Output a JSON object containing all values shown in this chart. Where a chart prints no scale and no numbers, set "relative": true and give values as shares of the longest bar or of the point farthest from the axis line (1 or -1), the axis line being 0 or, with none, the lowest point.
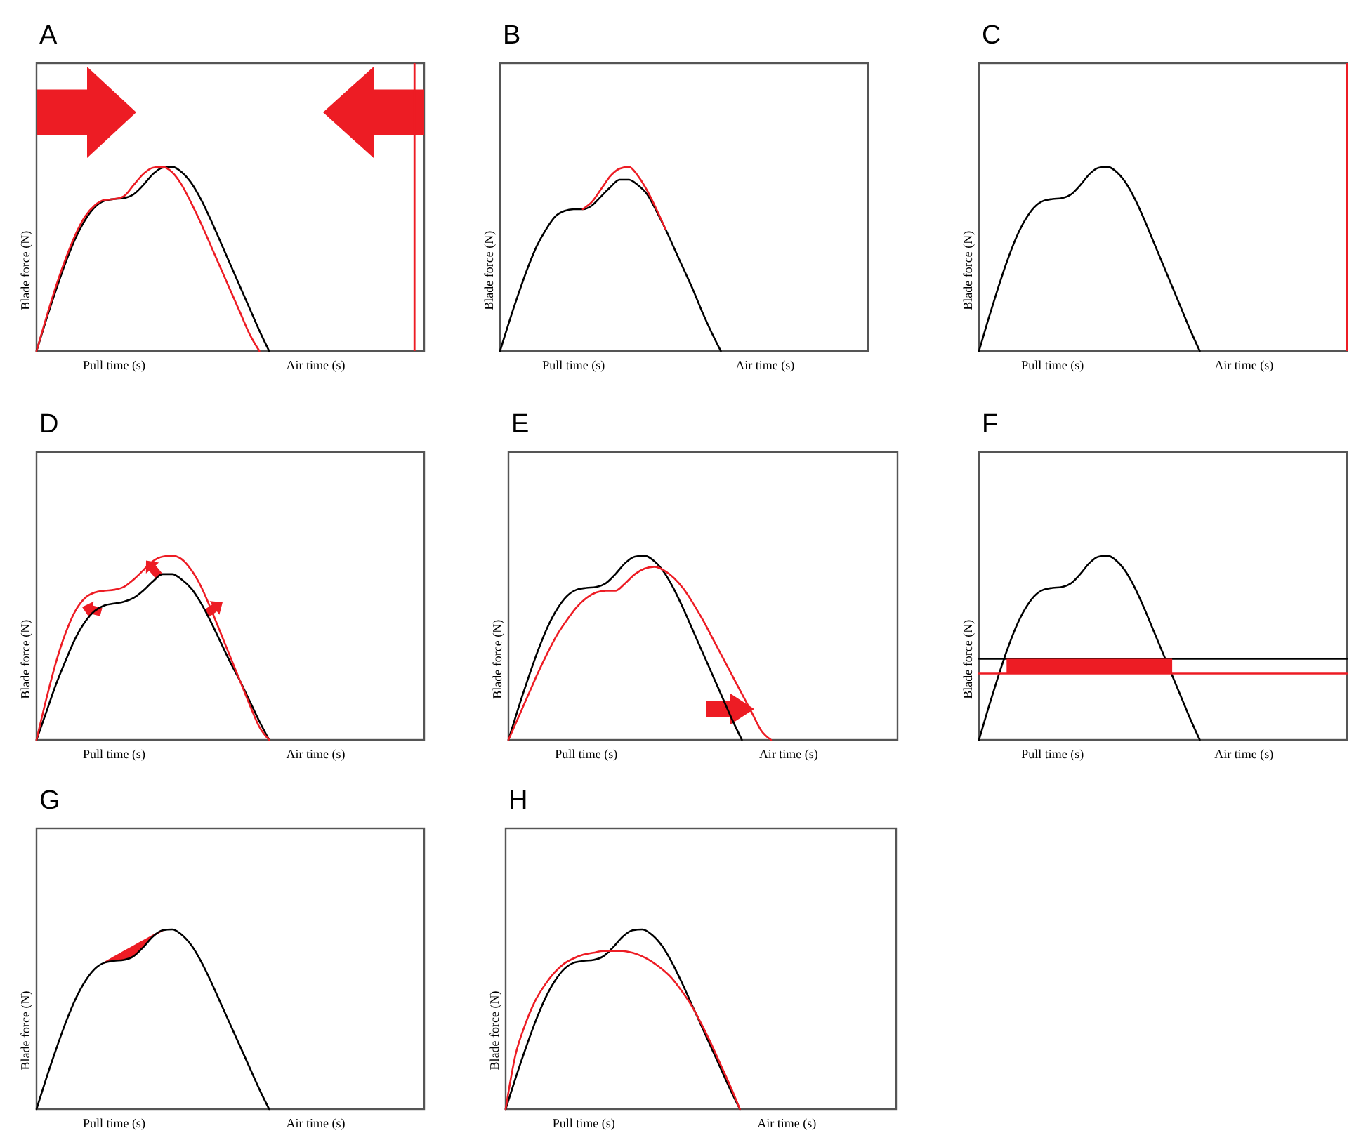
{
  "chart_data": [
    {
      "type": "line",
      "title": "A",
      "ylabel": "Blade force (N)",
      "annotations": [
        "Pull time (s)",
        "Air time (s)"
      ],
      "relative": true,
      "categories": [
        null,
        null,
        null,
        null,
        null,
        null,
        null,
        null,
        null,
        null,
        null,
        null,
        null,
        null,
        null,
        null,
        null,
        null,
        null,
        null,
        null,
        null,
        null,
        null,
        null,
        null,
        null,
        null,
        null,
        null,
        null,
        null,
        null,
        null,
        null,
        null,
        null,
        null,
        null,
        null,
        null
      ],
      "series": [
        {
          "color": "#000000",
          "values": [
            0,
            0.17,
            0.33,
            0.48,
            0.61,
            0.71,
            0.78,
            0.815,
            0.825,
            0.83,
            0.85,
            0.9,
            0.96,
            0.995,
            1,
            0.97,
            0.91,
            0.82,
            0.71,
            0.59,
            0.47,
            0.35,
            0.23,
            0.11,
            0,
            null,
            null,
            null,
            null,
            null,
            null,
            null,
            null,
            null,
            null,
            null,
            null,
            null,
            null,
            null,
            null
          ]
        },
        {
          "color": "#ed1c24",
          "values": [
            0,
            0.18,
            0.35,
            0.5,
            0.63,
            0.73,
            0.79,
            0.82,
            0.825,
            0.84,
            0.9,
            0.96,
            0.995,
            1,
            0.97,
            0.9,
            0.8,
            0.69,
            0.57,
            0.45,
            0.33,
            0.21,
            0.09,
            0,
            null,
            null,
            null,
            null,
            null,
            null,
            null,
            null,
            null,
            null,
            null,
            null,
            null,
            null,
            null,
            null,
            null
          ]
        }
      ]
    },
    {
      "type": "line",
      "title": "B",
      "ylabel": "Blade force (N)",
      "annotations": [
        "Pull time (s)",
        "Air time (s)"
      ],
      "relative": true,
      "categories": [
        null,
        null,
        null,
        null,
        null,
        null,
        null,
        null,
        null,
        null,
        null,
        null,
        null,
        null,
        null,
        null,
        null,
        null,
        null,
        null,
        null,
        null,
        null,
        null,
        null,
        null,
        null,
        null,
        null,
        null,
        null,
        null,
        null,
        null,
        null,
        null,
        null,
        null,
        null,
        null,
        null
      ],
      "series": [
        {
          "color": "#000000",
          "values": [
            0,
            0.16,
            0.31,
            0.45,
            0.57,
            0.66,
            0.73,
            0.76,
            0.77,
            0.77,
            0.79,
            0.84,
            0.89,
            0.93,
            0.93,
            0.9,
            0.85,
            0.76,
            0.66,
            0.55,
            0.44,
            0.33,
            0.21,
            0.1,
            0,
            null,
            null,
            null,
            null,
            null,
            null,
            null,
            null,
            null,
            null,
            null,
            null,
            null,
            null,
            null,
            null
          ]
        },
        {
          "color": "#ed1c24",
          "values": [
            null,
            null,
            null,
            null,
            null,
            null,
            null,
            null,
            null,
            0.77,
            0.81,
            0.88,
            0.95,
            0.99,
            1,
            0.95,
            0.87,
            0.77,
            0.66,
            null,
            null,
            null,
            null,
            null,
            null,
            null,
            null,
            null,
            null,
            null,
            null,
            null,
            null,
            null,
            null,
            null,
            null,
            null,
            null,
            null,
            null
          ]
        }
      ]
    },
    {
      "type": "line",
      "title": "C",
      "ylabel": "Blade force (N)",
      "annotations": [
        "Pull time (s)",
        "Air time (s)"
      ],
      "relative": true,
      "categories": [
        null,
        null,
        null,
        null,
        null,
        null,
        null,
        null,
        null,
        null,
        null,
        null,
        null,
        null,
        null,
        null,
        null,
        null,
        null,
        null,
        null,
        null,
        null,
        null,
        null,
        null,
        null,
        null,
        null,
        null,
        null,
        null,
        null,
        null,
        null,
        null,
        null,
        null,
        null,
        null,
        null
      ],
      "series": [
        {
          "color": "#000000",
          "values": [
            0,
            0.17,
            0.33,
            0.48,
            0.61,
            0.71,
            0.78,
            0.815,
            0.825,
            0.83,
            0.85,
            0.9,
            0.96,
            0.995,
            1,
            0.97,
            0.91,
            0.82,
            0.71,
            0.59,
            0.47,
            0.35,
            0.23,
            0.11,
            0,
            null,
            null,
            null,
            null,
            null,
            null,
            null,
            null,
            null,
            null,
            null,
            null,
            null,
            null,
            null,
            null
          ]
        }
      ]
    },
    {
      "type": "line",
      "title": "D",
      "ylabel": "Blade force (N)",
      "annotations": [
        "Pull time (s)",
        "Air time (s)"
      ],
      "relative": true,
      "categories": [
        null,
        null,
        null,
        null,
        null,
        null,
        null,
        null,
        null,
        null,
        null,
        null,
        null,
        null,
        null,
        null,
        null,
        null,
        null,
        null,
        null,
        null,
        null,
        null,
        null,
        null,
        null,
        null,
        null,
        null,
        null,
        null,
        null,
        null,
        null,
        null,
        null,
        null,
        null,
        null,
        null
      ],
      "series": [
        {
          "color": "#000000",
          "values": [
            0,
            0.15,
            0.3,
            0.43,
            0.55,
            0.64,
            0.7,
            0.73,
            0.74,
            0.75,
            0.77,
            0.81,
            0.86,
            0.9,
            0.9,
            0.87,
            0.82,
            0.74,
            0.64,
            0.53,
            0.42,
            0.32,
            0.21,
            0.1,
            0,
            null,
            null,
            null,
            null,
            null,
            null,
            null,
            null,
            null,
            null,
            null,
            null,
            null,
            null,
            null,
            null
          ]
        },
        {
          "color": "#ed1c24",
          "values": [
            0,
            0.22,
            0.42,
            0.58,
            0.7,
            0.77,
            0.8,
            0.81,
            0.815,
            0.83,
            0.87,
            0.92,
            0.97,
            0.995,
            1,
            0.98,
            0.92,
            0.83,
            0.71,
            0.58,
            0.45,
            0.32,
            0.19,
            0.07,
            0,
            null,
            null,
            null,
            null,
            null,
            null,
            null,
            null,
            null,
            null,
            null,
            null,
            null,
            null,
            null,
            null
          ]
        }
      ]
    },
    {
      "type": "line",
      "title": "E",
      "ylabel": "Blade force (N)",
      "annotations": [
        "Pull time (s)",
        "Air time (s)"
      ],
      "relative": true,
      "categories": [
        null,
        null,
        null,
        null,
        null,
        null,
        null,
        null,
        null,
        null,
        null,
        null,
        null,
        null,
        null,
        null,
        null,
        null,
        null,
        null,
        null,
        null,
        null,
        null,
        null,
        null,
        null,
        null,
        null,
        null,
        null,
        null,
        null,
        null,
        null,
        null,
        null,
        null,
        null,
        null,
        null
      ],
      "series": [
        {
          "color": "#000000",
          "values": [
            0,
            0.17,
            0.33,
            0.48,
            0.61,
            0.71,
            0.78,
            0.815,
            0.825,
            0.83,
            0.85,
            0.9,
            0.96,
            0.995,
            1,
            0.97,
            0.91,
            0.82,
            0.71,
            0.59,
            0.47,
            0.35,
            0.23,
            0.11,
            0,
            null,
            null,
            null,
            null,
            null,
            null,
            null,
            null,
            null,
            null,
            null,
            null,
            null,
            null,
            null,
            null
          ]
        },
        {
          "color": "#ed1c24",
          "values": [
            0,
            0.12,
            0.24,
            0.36,
            0.47,
            0.57,
            0.65,
            0.72,
            0.77,
            0.8,
            0.81,
            0.81,
            0.85,
            0.9,
            0.93,
            0.94,
            0.92,
            0.88,
            0.82,
            0.74,
            0.65,
            0.55,
            0.45,
            0.35,
            0.25,
            0.15,
            0.05,
            0,
            null,
            null,
            null,
            null,
            null,
            null,
            null,
            null,
            null,
            null,
            null,
            null,
            null
          ]
        }
      ]
    },
    {
      "type": "line",
      "title": "F",
      "ylabel": "Blade force (N)",
      "annotations": [
        "Pull time (s)",
        "Air time (s)"
      ],
      "relative": true,
      "categories": [
        null,
        null,
        null,
        null,
        null,
        null,
        null,
        null,
        null,
        null,
        null,
        null,
        null,
        null,
        null,
        null,
        null,
        null,
        null,
        null,
        null,
        null,
        null,
        null,
        null,
        null,
        null,
        null,
        null,
        null,
        null,
        null,
        null,
        null,
        null,
        null,
        null,
        null,
        null,
        null,
        null
      ],
      "series": [
        {
          "color": "#000000",
          "values": [
            0,
            0.17,
            0.33,
            0.48,
            0.61,
            0.71,
            0.78,
            0.815,
            0.825,
            0.83,
            0.85,
            0.9,
            0.96,
            0.995,
            1,
            0.97,
            0.91,
            0.82,
            0.71,
            0.59,
            0.47,
            0.35,
            0.23,
            0.11,
            0,
            null,
            null,
            null,
            null,
            null,
            null,
            null,
            null,
            null,
            null,
            null,
            null,
            null,
            null,
            null,
            null
          ]
        },
        {
          "color": "#000000",
          "values": [
            0.44,
            0.44,
            0.44,
            0.44,
            0.44,
            0.44,
            0.44,
            0.44,
            0.44,
            0.44,
            0.44,
            0.44,
            0.44,
            0.44,
            0.44,
            0.44,
            0.44,
            0.44,
            0.44,
            0.44,
            0.44,
            0.44,
            0.44,
            0.44,
            0.44,
            0.44,
            0.44,
            0.44,
            0.44,
            0.44,
            0.44,
            0.44,
            0.44,
            0.44,
            0.44,
            0.44,
            0.44,
            0.44,
            0.44,
            0.44,
            0.44
          ]
        },
        {
          "color": "#ed1c24",
          "values": [
            0.36,
            0.36,
            0.36,
            0.36,
            0.36,
            0.36,
            0.36,
            0.36,
            0.36,
            0.36,
            0.36,
            0.36,
            0.36,
            0.36,
            0.36,
            0.36,
            0.36,
            0.36,
            0.36,
            0.36,
            0.36,
            0.36,
            0.36,
            0.36,
            0.36,
            0.36,
            0.36,
            0.36,
            0.36,
            0.36,
            0.36,
            0.36,
            0.36,
            0.36,
            0.36,
            0.36,
            0.36,
            0.36,
            0.36,
            0.36,
            0.36
          ],
          "upper": [
            null,
            null,
            null,
            0.44,
            0.44,
            0.44,
            0.44,
            0.44,
            0.44,
            0.44,
            0.44,
            0.44,
            0.44,
            0.44,
            0.44,
            0.44,
            0.44,
            0.44,
            0.44,
            0.44,
            0.44,
            0.44,
            null,
            null,
            null,
            null,
            null,
            null,
            null,
            null,
            null,
            null,
            null,
            null,
            null,
            null,
            null,
            null,
            null,
            null,
            null
          ],
          "lower": [
            null,
            null,
            null,
            0.36,
            0.36,
            0.36,
            0.36,
            0.36,
            0.36,
            0.36,
            0.36,
            0.36,
            0.36,
            0.36,
            0.36,
            0.36,
            0.36,
            0.36,
            0.36,
            0.36,
            0.36,
            0.36,
            null,
            null,
            null,
            null,
            null,
            null,
            null,
            null,
            null,
            null,
            null,
            null,
            null,
            null,
            null,
            null,
            null,
            null,
            null
          ]
        }
      ]
    },
    {
      "type": "line",
      "title": "G",
      "ylabel": "Blade force (N)",
      "annotations": [
        "Pull time (s)",
        "Air time (s)"
      ],
      "relative": true,
      "categories": [
        null,
        null,
        null,
        null,
        null,
        null,
        null,
        null,
        null,
        null,
        null,
        null,
        null,
        null,
        null,
        null,
        null,
        null,
        null,
        null,
        null,
        null,
        null,
        null,
        null,
        null,
        null,
        null,
        null,
        null,
        null,
        null,
        null,
        null,
        null,
        null,
        null,
        null,
        null,
        null,
        null
      ],
      "series": [
        {
          "color": "#ed1c24",
          "values": [
            null,
            null,
            null,
            null,
            null,
            null,
            null,
            0.815,
            0.845,
            0.875,
            0.905,
            0.935,
            0.965,
            0.995,
            null,
            null,
            null,
            null,
            null,
            null,
            null,
            null,
            null,
            null,
            null,
            null,
            null,
            null,
            null,
            null,
            null,
            null,
            null,
            null,
            null,
            null,
            null,
            null,
            null,
            null,
            null
          ],
          "upper": [
            null,
            null,
            null,
            null,
            null,
            null,
            null,
            0.815,
            0.845,
            0.875,
            0.905,
            0.935,
            0.965,
            0.995,
            null,
            null,
            null,
            null,
            null,
            null,
            null,
            null,
            null,
            null,
            null,
            null,
            null,
            null,
            null,
            null,
            null,
            null,
            null,
            null,
            null,
            null,
            null,
            null,
            null,
            null,
            null
          ],
          "lower": [
            null,
            null,
            null,
            null,
            null,
            null,
            null,
            0.815,
            0.825,
            0.83,
            0.85,
            0.9,
            0.96,
            0.995,
            null,
            null,
            null,
            null,
            null,
            null,
            null,
            null,
            null,
            null,
            null,
            null,
            null,
            null,
            null,
            null,
            null,
            null,
            null,
            null,
            null,
            null,
            null,
            null,
            null,
            null,
            null
          ]
        },
        {
          "color": "#000000",
          "values": [
            0,
            0.17,
            0.33,
            0.48,
            0.61,
            0.71,
            0.78,
            0.815,
            0.825,
            0.83,
            0.85,
            0.9,
            0.96,
            0.995,
            1,
            0.97,
            0.91,
            0.82,
            0.71,
            0.59,
            0.47,
            0.35,
            0.23,
            0.11,
            0,
            null,
            null,
            null,
            null,
            null,
            null,
            null,
            null,
            null,
            null,
            null,
            null,
            null,
            null,
            null,
            null
          ]
        }
      ]
    },
    {
      "type": "line",
      "title": "H",
      "ylabel": "Blade force (N)",
      "annotations": [
        "Pull time (s)",
        "Air time (s)"
      ],
      "relative": true,
      "categories": [
        null,
        null,
        null,
        null,
        null,
        null,
        null,
        null,
        null,
        null,
        null,
        null,
        null,
        null,
        null,
        null,
        null,
        null,
        null,
        null,
        null,
        null,
        null,
        null,
        null,
        null,
        null,
        null,
        null,
        null,
        null,
        null,
        null,
        null,
        null,
        null,
        null,
        null,
        null,
        null,
        null
      ],
      "series": [
        {
          "color": "#000000",
          "values": [
            0,
            0.17,
            0.33,
            0.48,
            0.61,
            0.71,
            0.78,
            0.815,
            0.825,
            0.83,
            0.85,
            0.9,
            0.96,
            0.995,
            1,
            0.97,
            0.91,
            0.82,
            0.71,
            0.59,
            0.47,
            0.35,
            0.23,
            0.11,
            0,
            null,
            null,
            null,
            null,
            null,
            null,
            null,
            null,
            null,
            null,
            null,
            null,
            null,
            null,
            null,
            null
          ]
        },
        {
          "color": "#ed1c24",
          "values": [
            0,
            0.3,
            0.47,
            0.6,
            0.69,
            0.76,
            0.81,
            0.84,
            0.86,
            0.87,
            0.88,
            0.88,
            0.88,
            0.87,
            0.85,
            0.82,
            0.78,
            0.73,
            0.66,
            0.58,
            0.48,
            0.37,
            0.25,
            0.13,
            0,
            null,
            null,
            null,
            null,
            null,
            null,
            null,
            null,
            null,
            null,
            null,
            null,
            null,
            null,
            null,
            null
          ]
        }
      ]
    }
  ]
}
